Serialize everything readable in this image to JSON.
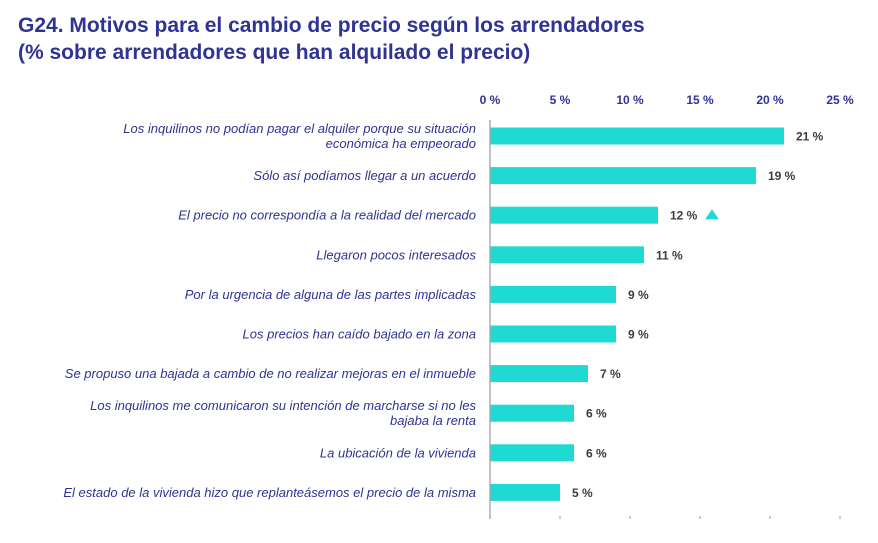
{
  "chart_data": {
    "type": "bar",
    "orientation": "horizontal",
    "title_line1": "G24. Motivos para el cambio de precio según los arrendadores",
    "title_line2": "(% sobre arrendadores que han alquilado el precio)",
    "x_ticks": [
      "0 %",
      "5 %",
      "10 %",
      "15 %",
      "20 %",
      "25 %"
    ],
    "xlim": [
      0,
      25
    ],
    "grid": false,
    "bar_color": "#1fdad2",
    "text_color": "#2f3393",
    "categories": [
      [
        "Los inquilinos no podían pagar el alquiler porque su situación",
        "económica ha empeorado"
      ],
      [
        "Sólo así podíamos llegar a un acuerdo"
      ],
      [
        "El precio no correspondía a la realidad del mercado"
      ],
      [
        "Llegaron pocos interesados"
      ],
      [
        "Por la urgencia de alguna de las partes implicadas"
      ],
      [
        "Los precios han caído bajado en la zona"
      ],
      [
        "Se propuso una bajada a cambio de no realizar mejoras en el inmueble"
      ],
      [
        "Los inquilinos me comunicaron su intención de marcharse si no les",
        "bajaba la renta"
      ],
      [
        "La ubicación de la vivienda"
      ],
      [
        "El estado de la vivienda hizo que replanteásemos el precio de la misma"
      ]
    ],
    "values": [
      21,
      19,
      12,
      11,
      9,
      9,
      7,
      6,
      6,
      5
    ],
    "value_labels": [
      "21 %",
      "19 %",
      "12 %",
      "11 %",
      "9 %",
      "9 %",
      "7 %",
      "6 %",
      "6 %",
      "5 %"
    ],
    "trend_markers": [
      {
        "category_index": 2,
        "direction": "up",
        "icon": "triangle-up-icon"
      }
    ]
  }
}
